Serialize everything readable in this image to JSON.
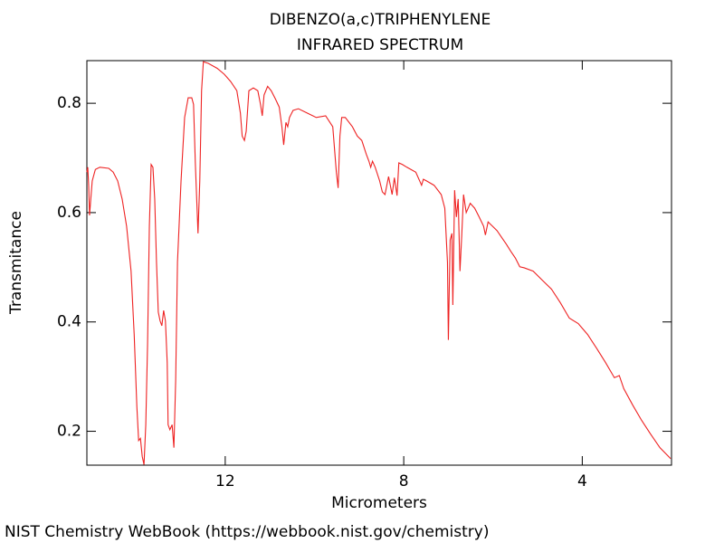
{
  "chart_data": {
    "type": "line",
    "title": "DIBENZO(a,c)TRIPHENYLENE",
    "subtitle": "INFRARED SPECTRUM",
    "x_label": "Micrometers",
    "y_label": "Transmitance",
    "credit": "NIST Chemistry WebBook (https://webbook.nist.gov/chemistry)",
    "xlim": [
      15.1,
      2.0
    ],
    "ylim": [
      0.138,
      0.878
    ],
    "xticks": [
      12,
      8,
      4
    ],
    "yticks": [
      0.2,
      0.4,
      0.6,
      0.8
    ],
    "grid": false,
    "x": [
      15.1,
      15.08,
      15.06,
      15.04,
      15.02,
      14.98,
      14.91,
      14.81,
      14.61,
      14.51,
      14.41,
      14.31,
      14.21,
      14.11,
      14.04,
      13.98,
      13.94,
      13.9,
      13.86,
      13.82,
      13.78,
      13.74,
      13.7,
      13.66,
      13.62,
      13.58,
      13.54,
      13.5,
      13.46,
      13.42,
      13.38,
      13.34,
      13.3,
      13.28,
      13.24,
      13.19,
      13.15,
      13.11,
      13.07,
      12.99,
      12.91,
      12.83,
      12.75,
      12.71,
      12.67,
      12.61,
      12.57,
      12.53,
      12.49,
      12.38,
      12.18,
      12.02,
      11.88,
      11.74,
      11.66,
      11.62,
      11.57,
      11.53,
      11.47,
      11.37,
      11.27,
      11.21,
      11.17,
      11.13,
      11.05,
      10.97,
      10.87,
      10.79,
      10.73,
      10.69,
      10.64,
      10.6,
      10.56,
      10.48,
      10.36,
      10.16,
      9.96,
      9.75,
      9.59,
      9.51,
      9.47,
      9.43,
      9.39,
      9.31,
      9.15,
      9.04,
      8.94,
      8.84,
      8.78,
      8.74,
      8.7,
      8.64,
      8.54,
      8.48,
      8.42,
      8.34,
      8.26,
      8.21,
      8.15,
      8.11,
      8.03,
      7.93,
      7.73,
      7.6,
      7.56,
      7.49,
      7.32,
      7.16,
      7.08,
      7.02,
      7.0,
      6.98,
      6.96,
      6.92,
      6.9,
      6.86,
      6.82,
      6.78,
      6.74,
      6.7,
      6.66,
      6.6,
      6.51,
      6.41,
      6.31,
      6.21,
      6.17,
      6.11,
      6.01,
      5.91,
      5.81,
      5.7,
      5.6,
      5.5,
      5.4,
      5.3,
      5.1,
      4.89,
      4.69,
      4.49,
      4.29,
      4.09,
      3.88,
      3.68,
      3.48,
      3.28,
      3.17,
      3.07,
      2.87,
      2.67,
      2.47,
      2.26,
      2.02
    ],
    "series": [
      {
        "name": "Transmitance",
        "color": "#ee2222",
        "values": [
          0.674,
          0.683,
          0.65,
          0.595,
          0.617,
          0.658,
          0.679,
          0.683,
          0.681,
          0.674,
          0.658,
          0.625,
          0.575,
          0.493,
          0.377,
          0.245,
          0.183,
          0.187,
          0.154,
          0.139,
          0.212,
          0.36,
          0.575,
          0.688,
          0.683,
          0.625,
          0.509,
          0.418,
          0.402,
          0.393,
          0.421,
          0.402,
          0.326,
          0.212,
          0.203,
          0.212,
          0.17,
          0.294,
          0.509,
          0.658,
          0.774,
          0.81,
          0.81,
          0.798,
          0.691,
          0.562,
          0.658,
          0.823,
          0.876,
          0.873,
          0.864,
          0.853,
          0.84,
          0.823,
          0.782,
          0.74,
          0.732,
          0.749,
          0.823,
          0.828,
          0.823,
          0.798,
          0.777,
          0.815,
          0.831,
          0.823,
          0.807,
          0.793,
          0.757,
          0.724,
          0.765,
          0.757,
          0.774,
          0.787,
          0.79,
          0.782,
          0.774,
          0.777,
          0.757,
          0.674,
          0.645,
          0.74,
          0.774,
          0.774,
          0.757,
          0.74,
          0.732,
          0.707,
          0.694,
          0.683,
          0.694,
          0.683,
          0.658,
          0.638,
          0.633,
          0.666,
          0.633,
          0.664,
          0.631,
          0.691,
          0.688,
          0.683,
          0.674,
          0.65,
          0.661,
          0.658,
          0.65,
          0.633,
          0.608,
          0.509,
          0.367,
          0.46,
          0.55,
          0.562,
          0.431,
          0.641,
          0.592,
          0.625,
          0.493,
          0.559,
          0.633,
          0.6,
          0.617,
          0.608,
          0.592,
          0.575,
          0.559,
          0.583,
          0.575,
          0.567,
          0.555,
          0.542,
          0.529,
          0.517,
          0.501,
          0.499,
          0.493,
          0.476,
          0.46,
          0.435,
          0.407,
          0.397,
          0.377,
          0.352,
          0.326,
          0.298,
          0.302,
          0.278,
          0.248,
          0.22,
          0.195,
          0.17,
          0.15
        ]
      }
    ]
  }
}
